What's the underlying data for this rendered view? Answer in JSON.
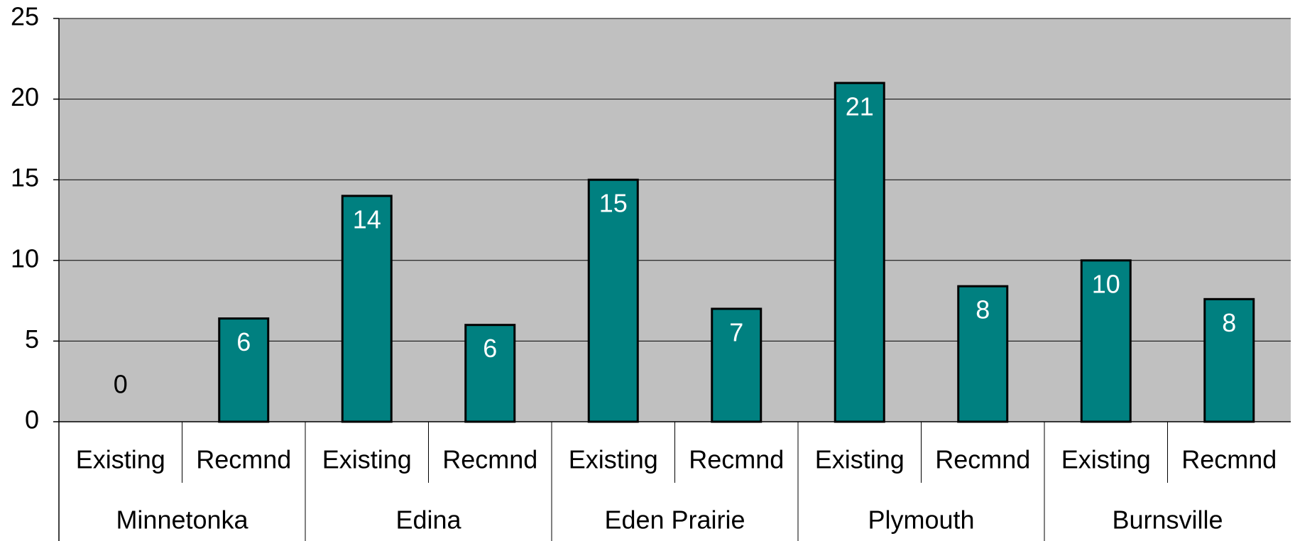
{
  "chart_data": {
    "type": "bar",
    "groups": [
      "Minnetonka",
      "Edina",
      "Eden Prairie",
      "Plymouth",
      "Burnsville"
    ],
    "categories": [
      "Existing",
      "Recmnd",
      "Existing",
      "Recmnd",
      "Existing",
      "Recmnd",
      "Existing",
      "Recmnd",
      "Existing",
      "Recmnd"
    ],
    "values": [
      0,
      6.4,
      14,
      6,
      15,
      7,
      21,
      8.4,
      10,
      7.6
    ],
    "value_labels": [
      "0",
      "6",
      "14",
      "6",
      "15",
      "7",
      "21",
      "8",
      "10",
      "8"
    ],
    "color": "#008080",
    "ylim": [
      0,
      25
    ],
    "yticks": [
      0,
      5,
      10,
      15,
      20,
      25
    ],
    "grid": true
  }
}
